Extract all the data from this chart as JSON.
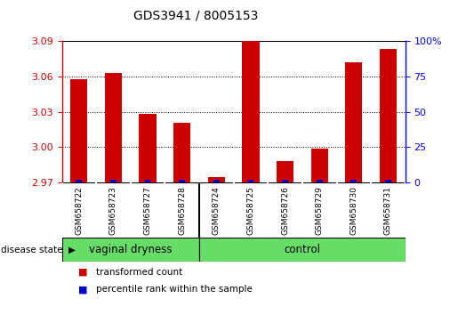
{
  "title": "GDS3941 / 8005153",
  "samples": [
    "GSM658722",
    "GSM658723",
    "GSM658727",
    "GSM658728",
    "GSM658724",
    "GSM658725",
    "GSM658726",
    "GSM658729",
    "GSM658730",
    "GSM658731"
  ],
  "transformed_count": [
    3.058,
    3.063,
    3.028,
    3.021,
    2.975,
    3.09,
    2.988,
    2.999,
    3.072,
    3.083
  ],
  "percentile_rank": [
    2.0,
    2.0,
    2.0,
    2.0,
    2.0,
    2.0,
    2.0,
    2.0,
    2.0,
    2.0
  ],
  "bar_color_red": "#cc0000",
  "bar_color_blue": "#0000cc",
  "ylim_left": [
    2.97,
    3.09
  ],
  "ylim_right": [
    0,
    100
  ],
  "yticks_left": [
    2.97,
    3.0,
    3.03,
    3.06,
    3.09
  ],
  "yticks_right": [
    0,
    25,
    50,
    75,
    100
  ],
  "vaginal_count": 4,
  "group_label_vaginal": "vaginal dryness",
  "group_label_control": "control",
  "disease_state_label": "disease state",
  "legend_red": "transformed count",
  "legend_blue": "percentile rank within the sample",
  "gray_bg": "#d0d0d0",
  "green_bg": "#66dd66",
  "bar_width": 0.5
}
